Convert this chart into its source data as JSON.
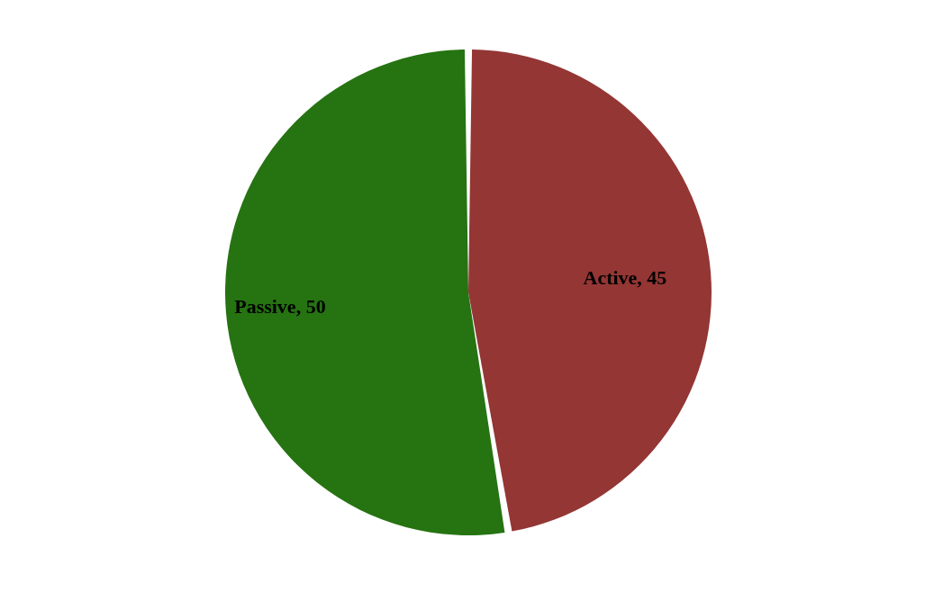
{
  "chart_data": {
    "type": "pie",
    "categories": [
      "Active",
      "Passive"
    ],
    "values": [
      45,
      50
    ],
    "colors": [
      "#943634",
      "#267312"
    ],
    "value_labels": [
      ", 45",
      ", 50"
    ],
    "legend": false
  }
}
